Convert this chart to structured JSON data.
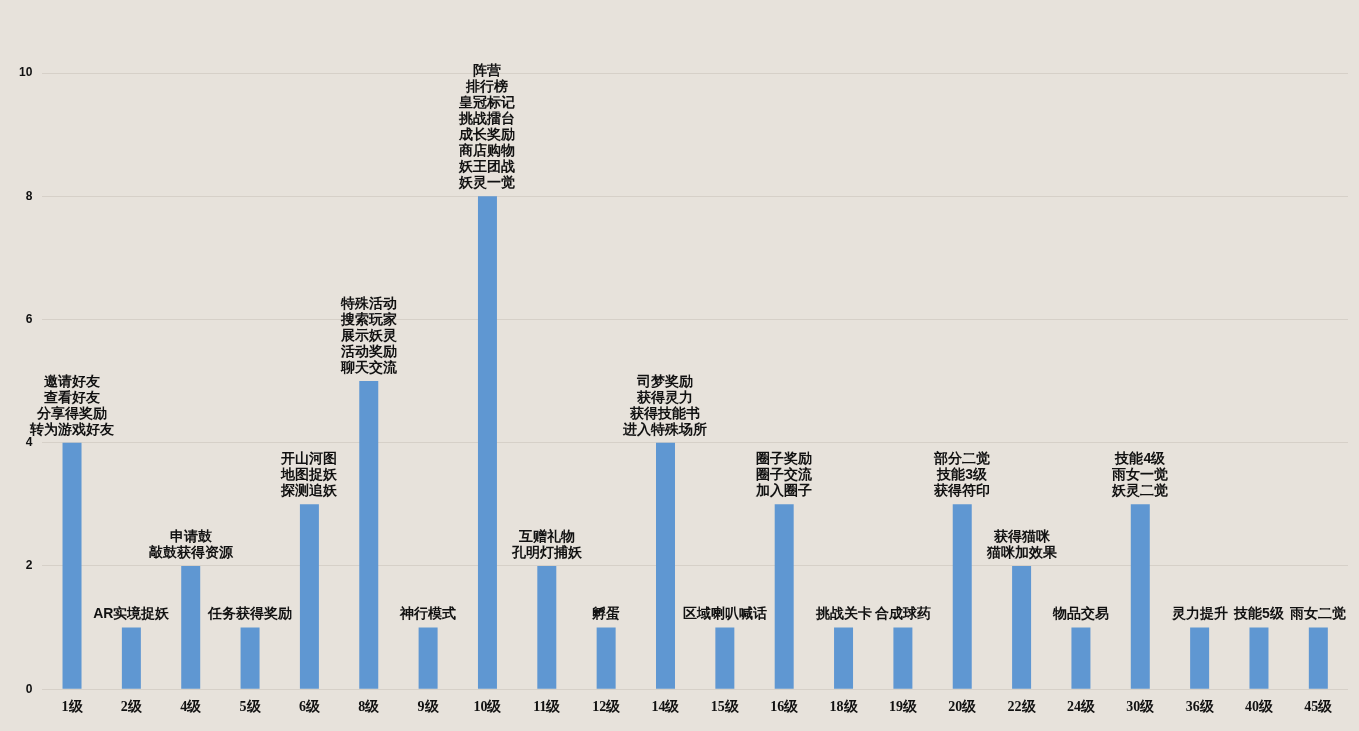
{
  "chart_data": {
    "type": "bar",
    "categories": [
      "1级",
      "2级",
      "4级",
      "5级",
      "6级",
      "8级",
      "9级",
      "10级",
      "11级",
      "12级",
      "14级",
      "15级",
      "16级",
      "18级",
      "19级",
      "20级",
      "22级",
      "24级",
      "30级",
      "36级",
      "40级",
      "45级"
    ],
    "values": [
      4,
      1,
      2,
      1,
      3,
      5,
      1,
      8,
      2,
      1,
      4,
      1,
      3,
      1,
      1,
      3,
      2,
      1,
      3,
      1,
      1,
      1
    ],
    "color": "#5f97d2",
    "ylim": [
      0,
      10
    ],
    "yticks": [
      0,
      2,
      4,
      6,
      8,
      10
    ],
    "grid": "y",
    "legend": false,
    "annotations": [
      "邀请好友",
      "查看好友",
      "分享得奖励",
      {
        "text": "转为游戏好友",
        "x": "1级",
        "y": 4
      },
      {
        "text": "AR实境捉妖",
        "x": "2级",
        "y": 1
      },
      "申请鼓",
      {
        "text": "敲鼓获得资源",
        "x": "4级",
        "y": 2
      },
      {
        "text": "任务获得奖励",
        "x": "5级",
        "y": 1
      },
      "开山河图",
      "地图捉妖",
      {
        "text": "探测追妖",
        "x": "6级",
        "y": 3
      },
      "特殊活动",
      "搜索玩家",
      "展示妖灵",
      "活动奖励",
      {
        "text": "聊天交流",
        "x": "8级",
        "y": 5
      },
      {
        "text": "神行模式",
        "x": "9级",
        "y": 1
      },
      "阵营",
      "排行榜",
      "皇冠标记",
      "挑战擂台",
      "成长奖励",
      "商店购物",
      "妖王团战",
      {
        "text": "妖灵一觉",
        "x": "10级",
        "y": 8
      },
      "互赠礼物",
      {
        "text": "孔明灯捕妖",
        "x": "11级",
        "y": 2
      },
      {
        "text": "孵蛋",
        "x": "12级",
        "y": 1
      },
      "司梦奖励",
      "获得灵力",
      "获得技能书",
      {
        "text": "进入特殊场所",
        "x": "14级",
        "y": 4
      },
      {
        "text": "区域喇叭喊话",
        "x": "15级",
        "y": 1
      },
      "圈子奖励",
      "圈子交流",
      {
        "text": "加入圈子",
        "x": "16级",
        "y": 3
      },
      {
        "text": "挑战关卡",
        "x": "18级",
        "y": 1
      },
      {
        "text": "合成球药",
        "x": "19级",
        "y": 1
      },
      "部分二觉",
      "技能3级",
      {
        "text": "获得符印",
        "x": "20级",
        "y": 3
      },
      "获得猫咪",
      {
        "text": "猫咪加效果",
        "x": "22级",
        "y": 2
      },
      {
        "text": "物品交易",
        "x": "24级",
        "y": 1
      },
      "技能4级",
      "雨女一觉",
      {
        "text": "妖灵二觉",
        "x": "30级",
        "y": 3
      },
      {
        "text": "灵力提升",
        "x": "36级",
        "y": 1
      },
      {
        "text": "技能5级",
        "x": "40级",
        "y": 1
      },
      {
        "text": "雨女二觉",
        "x": "45级",
        "y": 1
      }
    ]
  }
}
